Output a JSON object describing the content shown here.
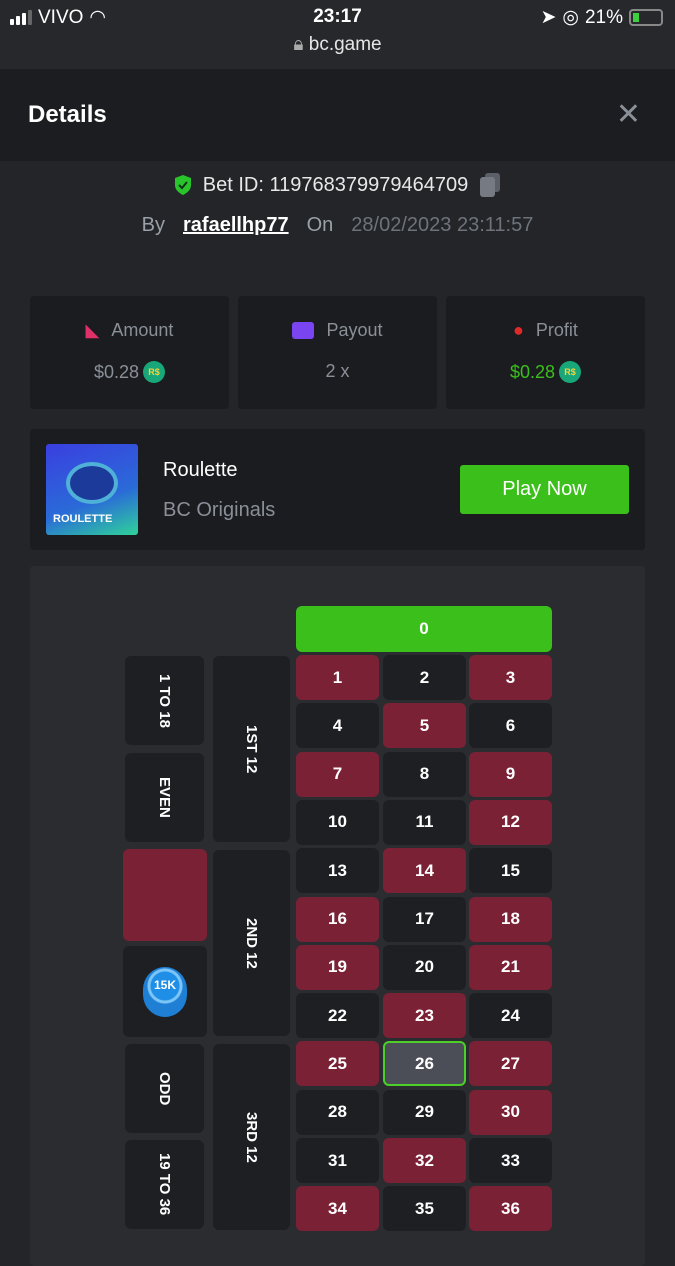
{
  "status_bar": {
    "carrier": "VIVO",
    "time": "23:17",
    "battery": "21%",
    "url": "bc.game"
  },
  "header": {
    "title": "Details",
    "close_icon": "close-icon"
  },
  "bet": {
    "id_label": "Bet ID: 119768379979464709",
    "by_label": "By",
    "user": "rafaellhp77",
    "on_label": "On",
    "date": "28/02/2023 23:11:57"
  },
  "stats": [
    {
      "label": "Amount",
      "value": "$0.28",
      "currency": "R$",
      "icon": "amount-icon",
      "color": "#e0306a"
    },
    {
      "label": "Payout",
      "value": "2 x",
      "icon": "payout-card-icon",
      "color": "#7a45f0"
    },
    {
      "label": "Profit",
      "value": "$0.28",
      "currency": "R$",
      "icon": "profit-icon",
      "color": "#e02a2a",
      "value_color": "#3bbf1b"
    }
  ],
  "game": {
    "name": "Roulette",
    "provider": "BC Originals",
    "thumb_label": "ROULETTE",
    "play_label": "Play Now"
  },
  "board": {
    "zero": "0",
    "reds": [
      1,
      3,
      5,
      7,
      9,
      12,
      14,
      16,
      18,
      19,
      21,
      23,
      25,
      27,
      30,
      32,
      34,
      36
    ],
    "selected_number": 26,
    "outside": {
      "low": "1 TO 18",
      "even": "EVEN",
      "odd": "ODD",
      "high": "19 TO 36"
    },
    "dozens": [
      "1ST 12",
      "2ND 12",
      "3RD 12"
    ],
    "chip": {
      "label": "15K",
      "on": "black"
    }
  }
}
